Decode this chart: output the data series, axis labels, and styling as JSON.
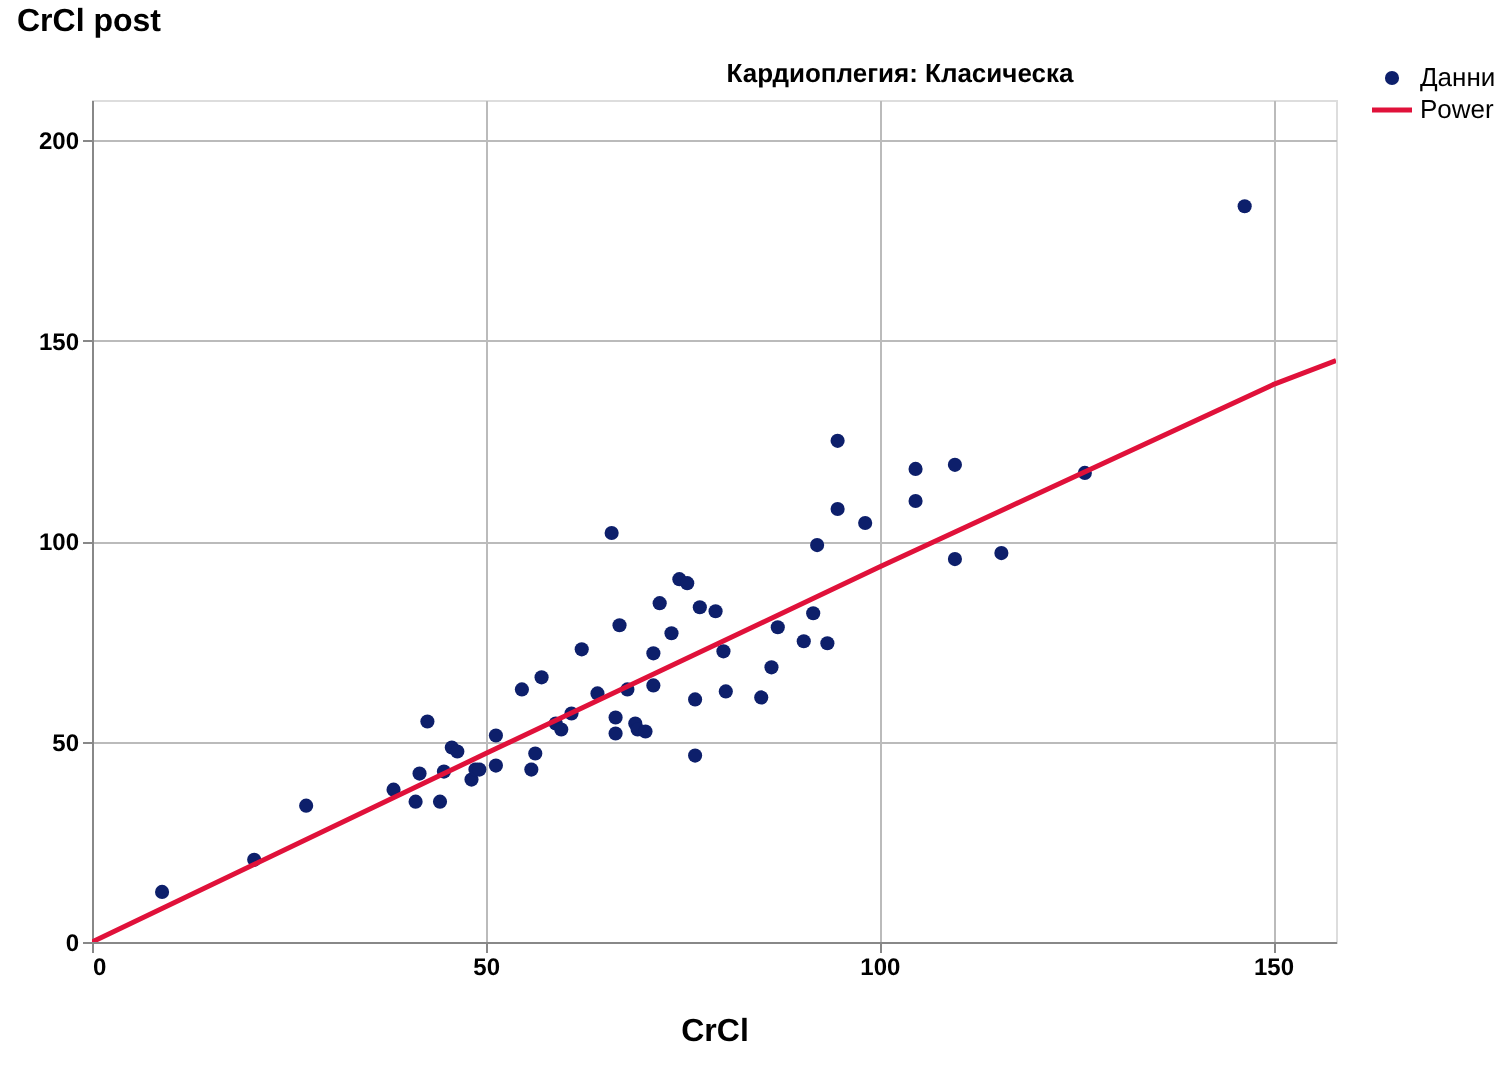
{
  "chart_data": {
    "type": "scatter",
    "title": "Кардиоплегия: Класическа",
    "xlabel": "CrCl",
    "ylabel": "CrCl post",
    "xlim": [
      0,
      158
    ],
    "ylim": [
      0,
      210
    ],
    "xticks": [
      0,
      50,
      100,
      150
    ],
    "yticks": [
      0,
      50,
      100,
      150,
      200
    ],
    "grid": true,
    "legend": "top right",
    "series": [
      {
        "name": "Данни",
        "marker": "circle",
        "color": "#0d1f6b",
        "x": [
          8.9,
          20.6,
          27.2,
          38.3,
          41.1,
          41.6,
          42.6,
          44.2,
          44.7,
          45.7,
          46.4,
          48.2,
          48.7,
          49.2,
          51.3,
          51.3,
          54.6,
          55.8,
          56.3,
          57.1,
          58.9,
          59.6,
          60.9,
          62.2,
          64.2,
          66,
          66.5,
          66.5,
          67,
          68,
          69,
          69.3,
          70.3,
          71.3,
          71.3,
          72.1,
          73.6,
          74.6,
          75.6,
          76.6,
          76.6,
          77.2,
          79.2,
          80.2,
          80.5,
          85,
          86.3,
          87.1,
          90.4,
          91.6,
          92.1,
          93.4,
          94.7,
          94.7,
          98.2,
          104.6,
          104.6,
          109.6,
          109.6,
          115.5,
          126.1,
          146.4
        ],
        "values": [
          12.5,
          20.5,
          34,
          38,
          35,
          42,
          55,
          35,
          42.5,
          48.5,
          47.5,
          40.5,
          43,
          43,
          51.5,
          44,
          63,
          43,
          47,
          66,
          54.5,
          53,
          57,
          73,
          62,
          102,
          56,
          52,
          79,
          63,
          54.5,
          53,
          52.5,
          72,
          64,
          84.5,
          77,
          90.5,
          89.5,
          46.5,
          60.5,
          83.5,
          82.5,
          72.5,
          62.5,
          61,
          68.5,
          78.5,
          75,
          82,
          99,
          74.5,
          108,
          125,
          104.5,
          110,
          118,
          95.5,
          119,
          97,
          117,
          183.5
        ]
      },
      {
        "name": "Power",
        "type": "line",
        "color": "#e0113a",
        "line_style": "solid",
        "x": [
          0,
          50,
          100,
          150,
          158
        ],
        "values": [
          0,
          47,
          93.5,
          139,
          145
        ]
      }
    ]
  }
}
